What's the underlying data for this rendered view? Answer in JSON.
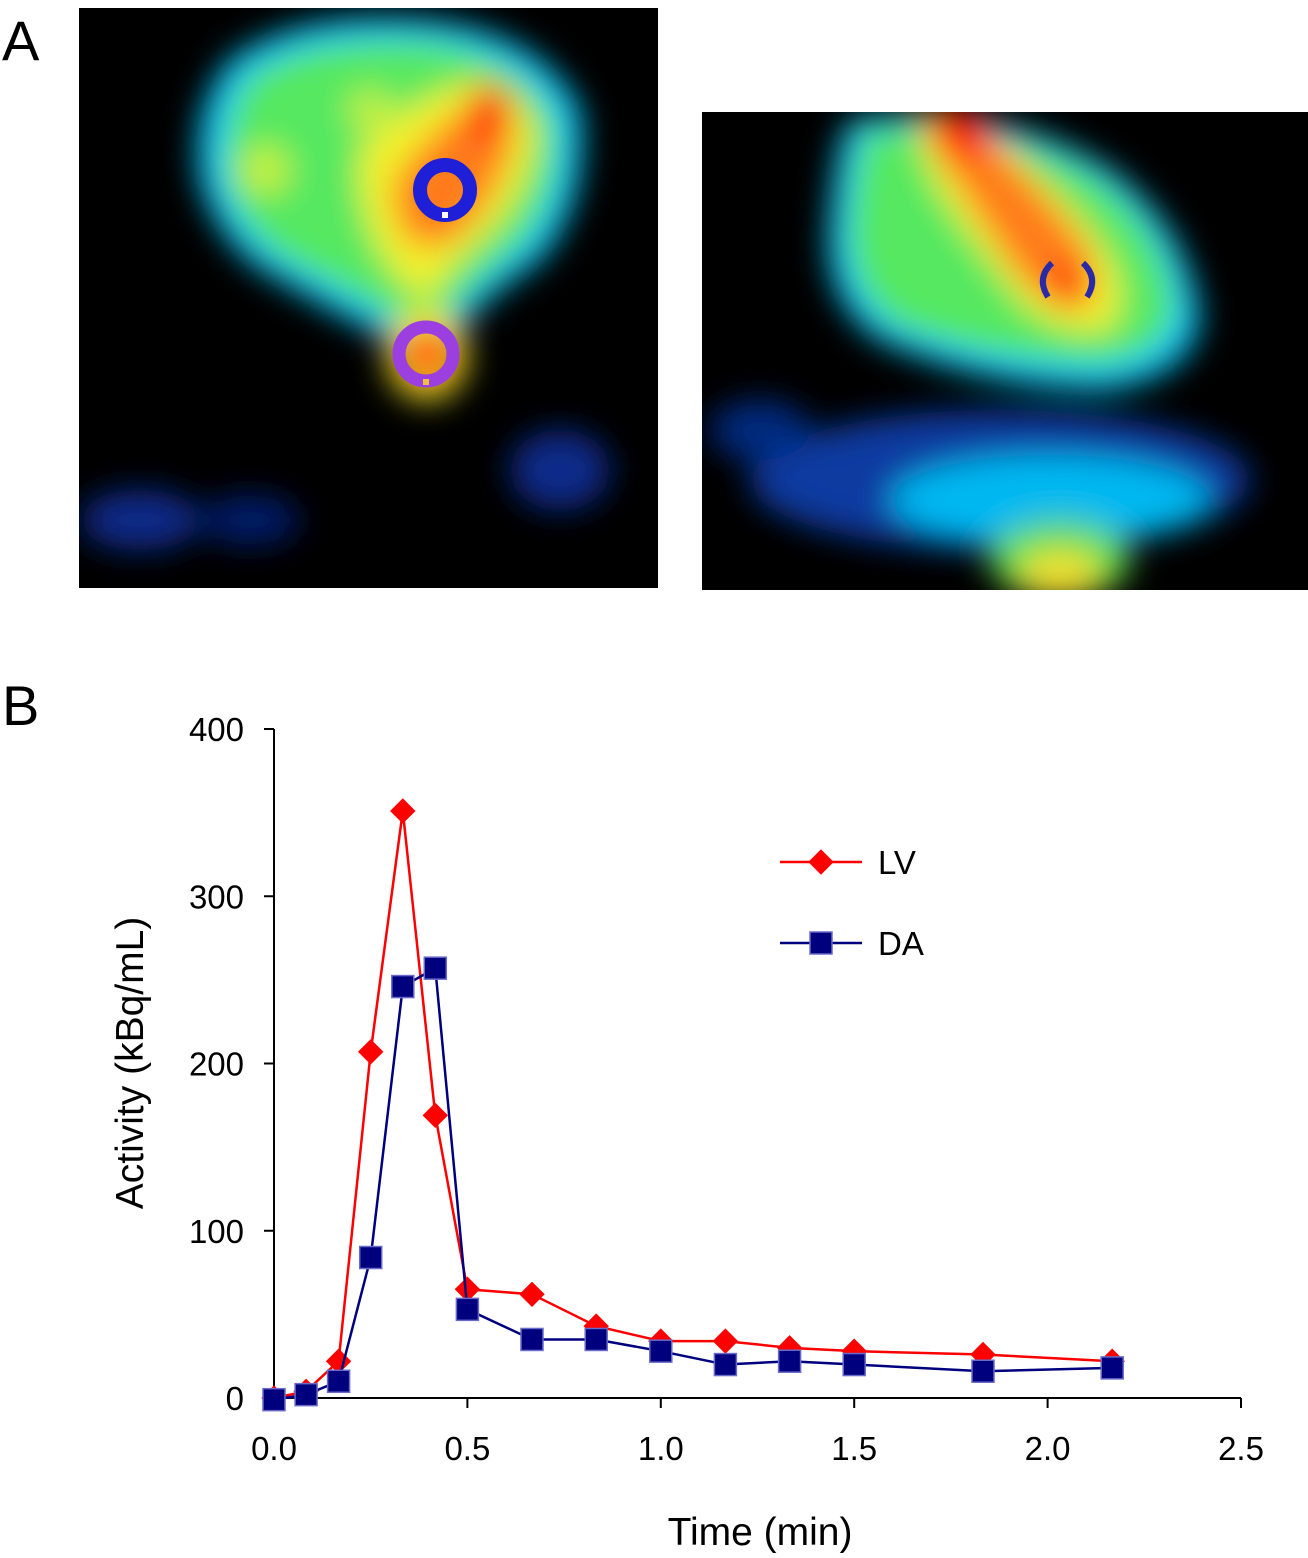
{
  "panels": {
    "a_label": "A",
    "b_label": "B"
  },
  "colors": {
    "lv": "#ff0000",
    "da": "#00007f",
    "image_background": "#000000"
  },
  "images": [
    {
      "name": "transaxial-pet-image",
      "colormap": "jet",
      "rois": [
        {
          "name": "lv-roi-circle",
          "color": "#1f1fd8"
        },
        {
          "name": "da-roi-circle",
          "color": "#9b3fe0"
        }
      ]
    },
    {
      "name": "sagittal-pet-image",
      "colormap": "jet",
      "rois": [
        {
          "name": "lv-roi-arc",
          "color": "#2a2aa8"
        }
      ]
    }
  ],
  "chart_data": {
    "type": "line",
    "title": "",
    "xlabel": "Time (min)",
    "ylabel": "Activity (kBq/mL)",
    "xlim": [
      0,
      2.5
    ],
    "ylim": [
      0,
      400
    ],
    "xticks": [
      "0.0",
      "0.5",
      "1.0",
      "1.5",
      "2.0",
      "2.5"
    ],
    "yticks": [
      "0",
      "100",
      "200",
      "300",
      "400"
    ],
    "grid": false,
    "legend_position": "top-right",
    "series": [
      {
        "name": "LV",
        "marker": "diamond",
        "color": "#ff0000",
        "x": [
          0,
          0.083,
          0.167,
          0.25,
          0.333,
          0.417,
          0.5,
          0.667,
          0.833,
          1.0,
          1.167,
          1.333,
          1.5,
          1.833,
          2.167
        ],
        "y": [
          0,
          4,
          22,
          207,
          351,
          169,
          65,
          62,
          43,
          34,
          34,
          30,
          28,
          26,
          22
        ]
      },
      {
        "name": "DA",
        "marker": "square",
        "color": "#00007f",
        "x": [
          0,
          0.083,
          0.167,
          0.25,
          0.333,
          0.417,
          0.5,
          0.667,
          0.833,
          1.0,
          1.167,
          1.333,
          1.5,
          1.833,
          2.167
        ],
        "y": [
          -1,
          2,
          10,
          84,
          246,
          257,
          53,
          35,
          35,
          28,
          20,
          22,
          20,
          16,
          18
        ]
      }
    ]
  }
}
